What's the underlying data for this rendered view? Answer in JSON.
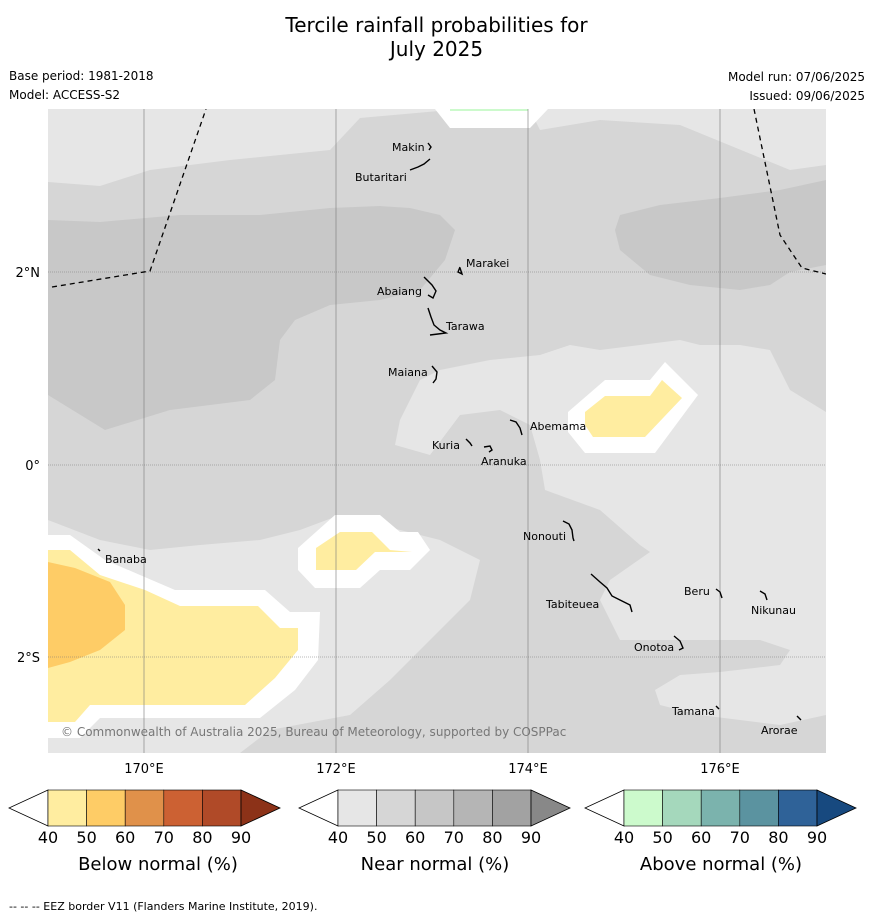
{
  "header": {
    "title_line1": "Tercile rainfall probabilities for",
    "title_line2": "July 2025",
    "base_period": "Base period: 1981-2018",
    "model": "Model: ACCESS-S2",
    "model_run": "Model run: 07/06/2025",
    "issued": "Issued: 09/06/2025"
  },
  "map": {
    "lat_labels": [
      "2°N",
      "0°",
      "2°S"
    ],
    "lon_labels": [
      "170°E",
      "172°E",
      "174°E",
      "176°E"
    ],
    "places": [
      "Makin",
      "Butaritari",
      "Marakei",
      "Abaiang",
      "Tarawa",
      "Maiana",
      "Abemama",
      "Kuria",
      "Aranuka",
      "Banaba",
      "Nonouti",
      "Beru",
      "Tabiteuea",
      "Nikunau",
      "Onotoa",
      "Tamana",
      "Arorae"
    ],
    "copyright": "© Commonwealth of Australia 2025, Bureau of Meteorology, supported by COSPPac"
  },
  "legend": {
    "below": {
      "label": "Below normal (%)",
      "colors": [
        "#ffeda0",
        "#fecc66",
        "#e0914a",
        "#cc6133",
        "#b04a28",
        "#8c3218"
      ]
    },
    "near": {
      "label": "Near normal (%)",
      "colors": [
        "#e6e6e6",
        "#d6d6d6",
        "#c6c6c6",
        "#b5b5b5",
        "#a2a2a2",
        "#888888"
      ]
    },
    "above": {
      "label": "Above normal (%)",
      "colors": [
        "#ccfacc",
        "#a5d8bc",
        "#7bb3ad",
        "#5b93a0",
        "#2f6298",
        "#17497f"
      ]
    },
    "ticks": [
      "40",
      "50",
      "60",
      "70",
      "80",
      "90"
    ]
  },
  "footnote": "--  --  -- EEZ border V11 (Flanders Marine Institute, 2019)."
}
